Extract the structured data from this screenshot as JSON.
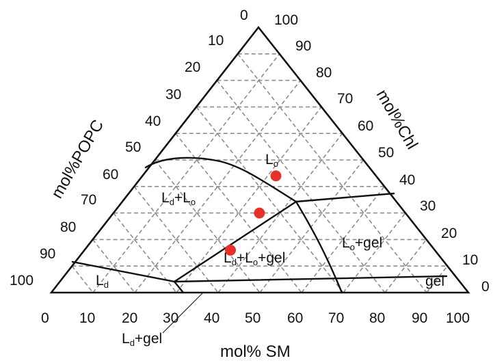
{
  "axes": {
    "bottom_title": "mol% SM",
    "left_title": "mol%POPC",
    "right_title": "mol%Chl",
    "bottom_ticks": [
      "0",
      "10",
      "20",
      "30",
      "40",
      "50",
      "60",
      "70",
      "80",
      "90",
      "100"
    ],
    "left_ticks": [
      "0",
      "10",
      "20",
      "30",
      "40",
      "50",
      "60",
      "70",
      "80",
      "90",
      "100"
    ],
    "right_ticks": [
      "100",
      "90",
      "80",
      "70",
      "60",
      "50",
      "40",
      "30",
      "20",
      "10",
      "0"
    ]
  },
  "regions": [
    {
      "main": "L",
      "sub": "o",
      "suffix": ""
    },
    {
      "main": "L",
      "sub": "d",
      "suffix": "+L",
      "sub2": "o"
    },
    {
      "main": "L",
      "sub": "d",
      "suffix": "+L",
      "sub2": "o",
      "suffix2": "+gel"
    },
    {
      "main": "L",
      "sub": "o",
      "suffix": "+gel"
    },
    {
      "main": "L",
      "sub": "d",
      "suffix": ""
    },
    {
      "main": "gel",
      "sub": "",
      "suffix": ""
    },
    {
      "main": "L",
      "sub": "d",
      "suffix": "+gel"
    }
  ],
  "points": [
    {
      "sm": 32,
      "chl": 44
    },
    {
      "sm": 35,
      "chl": 30
    },
    {
      "sm": 35,
      "chl": 16
    }
  ],
  "colors": {
    "point": "#e8302a",
    "grid": "#8c8c8c",
    "line": "#111111"
  }
}
